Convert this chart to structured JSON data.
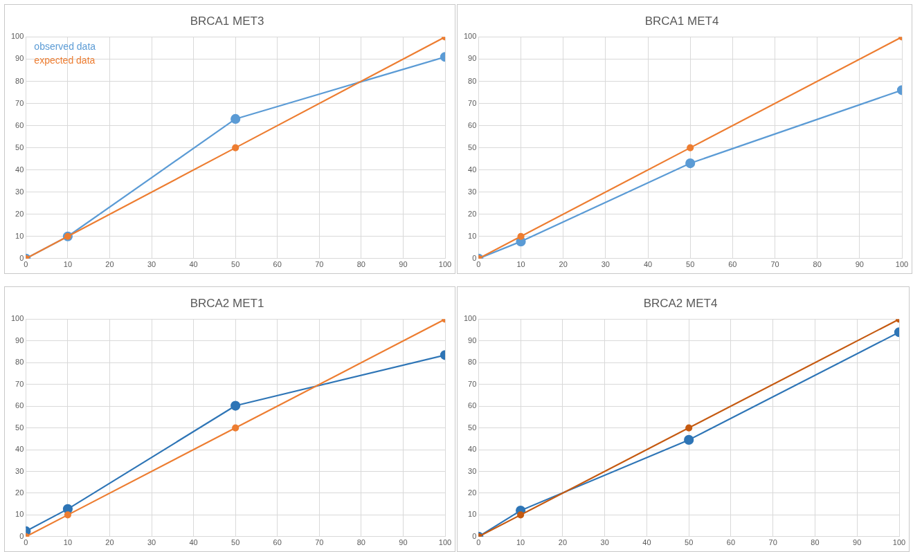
{
  "chart_data": [
    {
      "type": "line",
      "title": "BRCA1 MET3",
      "x": [
        0,
        10,
        50,
        100
      ],
      "xlim": [
        0,
        100
      ],
      "xticks": [
        0,
        10,
        20,
        30,
        40,
        50,
        60,
        70,
        80,
        90,
        100
      ],
      "ylim": [
        0,
        100
      ],
      "yticks": [
        0,
        10,
        20,
        30,
        40,
        50,
        60,
        70,
        80,
        90,
        100
      ],
      "grid": true,
      "marker": "circle",
      "legend": "top left",
      "series": [
        {
          "name": "observed data",
          "color": "#5b9bd5",
          "values": [
            0,
            10,
            63,
            91
          ]
        },
        {
          "name": "expected data",
          "color": "#ed7d31",
          "values": [
            0,
            10,
            50,
            100
          ]
        }
      ]
    },
    {
      "type": "line",
      "title": "BRCA1 MET4",
      "x": [
        0,
        10,
        50,
        100
      ],
      "xlim": [
        0,
        100
      ],
      "xticks": [
        0,
        10,
        20,
        30,
        40,
        50,
        60,
        70,
        80,
        90,
        100
      ],
      "ylim": [
        0,
        100
      ],
      "yticks": [
        0,
        10,
        20,
        30,
        40,
        50,
        60,
        70,
        80,
        90,
        100
      ],
      "grid": true,
      "marker": "circle",
      "series": [
        {
          "color": "#5b9bd5",
          "values": [
            0,
            7.7,
            43,
            76
          ]
        },
        {
          "color": "#ed7d31",
          "values": [
            0,
            10,
            50,
            100
          ]
        }
      ]
    },
    {
      "type": "line",
      "title": "BRCA2 MET1",
      "x": [
        0,
        10,
        50,
        100
      ],
      "xlim": [
        0,
        100
      ],
      "xticks": [
        0,
        10,
        20,
        30,
        40,
        50,
        60,
        70,
        80,
        90,
        100
      ],
      "ylim": [
        0,
        100
      ],
      "yticks": [
        0,
        10,
        20,
        30,
        40,
        50,
        60,
        70,
        80,
        90,
        100
      ],
      "grid": true,
      "marker": "circle",
      "series": [
        {
          "color": "#2e75b6",
          "values": [
            2.5,
            12.7,
            60.2,
            83.5
          ]
        },
        {
          "color": "#ed7d31",
          "values": [
            0,
            10,
            50,
            100
          ]
        }
      ]
    },
    {
      "type": "line",
      "title": "BRCA2 MET4",
      "x": [
        0,
        10,
        50,
        100
      ],
      "xlim": [
        0,
        100
      ],
      "xticks": [
        0,
        10,
        20,
        30,
        40,
        50,
        60,
        70,
        80,
        90,
        100
      ],
      "ylim": [
        0,
        100
      ],
      "yticks": [
        0,
        10,
        20,
        30,
        40,
        50,
        60,
        70,
        80,
        90,
        100
      ],
      "grid": true,
      "marker": "circle",
      "series": [
        {
          "color": "#2e75b6",
          "values": [
            0,
            12,
            44.5,
            94
          ]
        },
        {
          "color": "#c55a11",
          "values": [
            0,
            10,
            50,
            100
          ]
        }
      ]
    }
  ]
}
